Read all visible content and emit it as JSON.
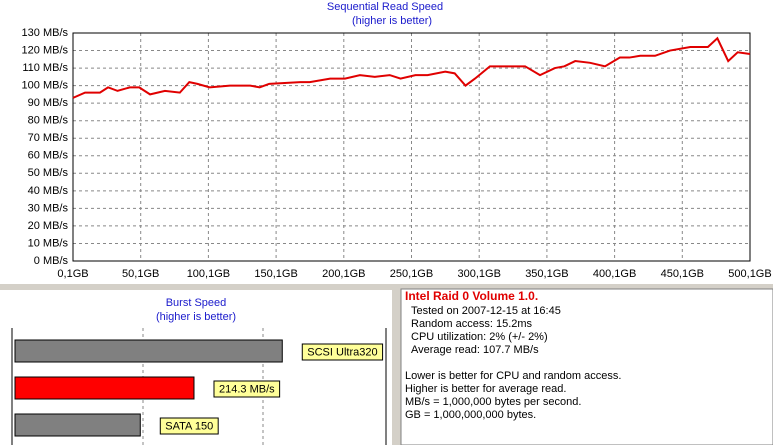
{
  "chart_data": [
    {
      "type": "line",
      "title": "Sequential Read Speed",
      "subtitle": "(higher is better)",
      "x": [
        0.1,
        9,
        20,
        26,
        33,
        42,
        49,
        57,
        68,
        79,
        86,
        92,
        101,
        116,
        131,
        138,
        145,
        168,
        175,
        190,
        201,
        212,
        223,
        234,
        242,
        253,
        262,
        275,
        282,
        290,
        297,
        308,
        319,
        326,
        334,
        345,
        356,
        363,
        371,
        382,
        393,
        404,
        411,
        419,
        430,
        441,
        456,
        463,
        469,
        476,
        484,
        491,
        500.1
      ],
      "series": [
        {
          "color": "#e00000",
          "values": [
            93,
            96,
            96,
            99,
            97,
            99,
            99,
            95,
            97,
            96,
            102,
            101,
            99,
            100,
            100,
            99,
            101,
            102,
            102,
            104,
            104,
            106,
            105,
            106,
            104,
            106,
            106,
            108,
            107,
            100,
            104,
            111,
            111,
            111,
            111,
            106,
            110,
            111,
            114,
            113,
            111,
            116,
            116,
            117,
            117,
            120,
            122,
            122,
            122,
            127,
            114,
            119,
            118
          ]
        }
      ],
      "xlim": [
        0.1,
        500.1
      ],
      "xticks": [
        {
          "value": 0.1,
          "label": "0,1GB"
        },
        {
          "value": 50.1,
          "label": "50,1GB"
        },
        {
          "value": 100.1,
          "label": "100,1GB"
        },
        {
          "value": 150.1,
          "label": "150,1GB"
        },
        {
          "value": 200.1,
          "label": "200,1GB"
        },
        {
          "value": 250.1,
          "label": "250,1GB"
        },
        {
          "value": 300.1,
          "label": "300,1GB"
        },
        {
          "value": 350.1,
          "label": "350,1GB"
        },
        {
          "value": 400.1,
          "label": "400,1GB"
        },
        {
          "value": 450.1,
          "label": "450,1GB"
        },
        {
          "value": 500.1,
          "label": "500,1GB"
        }
      ],
      "ylim": [
        0,
        130
      ],
      "yticks": [
        {
          "value": 0,
          "label": "0 MB/s"
        },
        {
          "value": 10,
          "label": "10 MB/s"
        },
        {
          "value": 20,
          "label": "20 MB/s"
        },
        {
          "value": 30,
          "label": "30 MB/s"
        },
        {
          "value": 40,
          "label": "40 MB/s"
        },
        {
          "value": 50,
          "label": "50 MB/s"
        },
        {
          "value": 60,
          "label": "60 MB/s"
        },
        {
          "value": 70,
          "label": "70 MB/s"
        },
        {
          "value": 80,
          "label": "80 MB/s"
        },
        {
          "value": 90,
          "label": "90 MB/s"
        },
        {
          "value": 100,
          "label": "100 MB/s"
        },
        {
          "value": 110,
          "label": "110 MB/s"
        },
        {
          "value": 120,
          "label": "120 MB/s"
        },
        {
          "value": 130,
          "label": "130 MB/s"
        }
      ],
      "grid": true
    },
    {
      "type": "bar",
      "orientation": "horizontal",
      "title": "Burst Speed",
      "subtitle": "(higher is better)",
      "values": [
        320,
        214.3,
        150
      ],
      "value_labels": [
        "SCSI Ultra320",
        "214.3 MB/s",
        "SATA 150"
      ],
      "colors": [
        "#808080",
        "#ff0000",
        "#808080"
      ],
      "xlim": [
        0,
        443
      ]
    }
  ],
  "info_panel": {
    "title": "Intel Raid 0 Volume 1.0.",
    "details": [
      "Tested on 2007-12-15 at 16:45",
      "Random access: 15.2ms",
      "CPU utilization: 2% (+/- 2%)",
      "Average read: 107.7 MB/s"
    ],
    "notes": [
      "Lower is better for CPU and random access.",
      "Higher is better for average read.",
      "MB/s = 1,000,000 bytes per second.",
      "GB = 1,000,000,000 bytes."
    ]
  }
}
